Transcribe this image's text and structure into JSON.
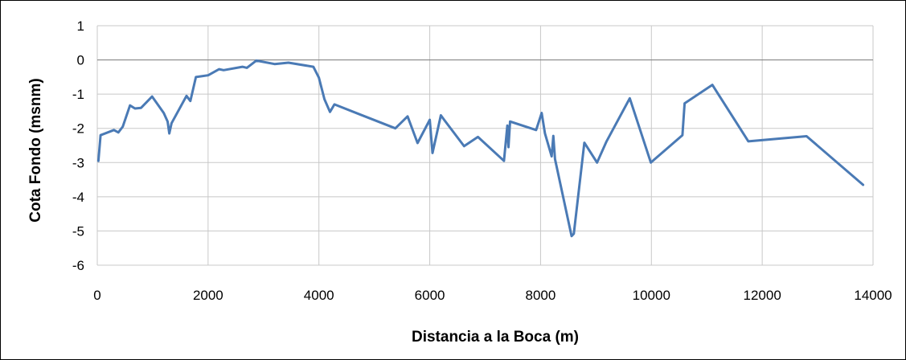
{
  "chart_data": {
    "type": "line",
    "title": "",
    "xlabel": "Distancia a la Boca (m)",
    "ylabel": "Cota Fondo (msnm)",
    "xlim": [
      0,
      14000
    ],
    "ylim": [
      -6,
      1
    ],
    "x_ticks": [
      0,
      2000,
      4000,
      6000,
      8000,
      10000,
      12000,
      14000
    ],
    "y_ticks": [
      1,
      0,
      -1,
      -2,
      -3,
      -4,
      -5,
      -6
    ],
    "grid": true,
    "legend": "none",
    "series_color": "#4a7ab5",
    "series": [
      {
        "x": [
          20,
          60,
          300,
          380,
          460,
          590,
          680,
          790,
          990,
          1200,
          1270,
          1300,
          1340,
          1610,
          1680,
          1780,
          2000,
          2200,
          2280,
          2620,
          2700,
          2870,
          3200,
          3450,
          3900,
          4000,
          4100,
          4200,
          4280,
          4750,
          5380,
          5600,
          5780,
          6000,
          6050,
          6200,
          6260,
          6620,
          6870,
          7340,
          7400,
          7420,
          7450,
          7920,
          8020,
          8080,
          8200,
          8230,
          8260,
          8560,
          8600,
          8790,
          9020,
          9190,
          9610,
          9990,
          10560,
          10600,
          11100,
          11750,
          12800,
          13820
        ],
        "y": [
          -2.95,
          -2.2,
          -2.05,
          -2.12,
          -1.95,
          -1.33,
          -1.42,
          -1.4,
          -1.07,
          -1.55,
          -1.8,
          -2.15,
          -1.85,
          -1.05,
          -1.2,
          -0.5,
          -0.45,
          -0.27,
          -0.3,
          -0.2,
          -0.23,
          -0.02,
          -0.12,
          -0.08,
          -0.2,
          -0.52,
          -1.15,
          -1.52,
          -1.3,
          -1.6,
          -2.0,
          -1.65,
          -2.43,
          -1.75,
          -2.72,
          -1.62,
          -1.75,
          -2.52,
          -2.25,
          -2.95,
          -1.92,
          -2.55,
          -1.8,
          -2.05,
          -1.55,
          -2.15,
          -2.82,
          -2.22,
          -2.9,
          -5.15,
          -5.08,
          -2.42,
          -3.0,
          -2.38,
          -1.12,
          -3.0,
          -2.2,
          -1.27,
          -0.73,
          -2.38,
          -2.23,
          -3.65
        ]
      }
    ]
  }
}
